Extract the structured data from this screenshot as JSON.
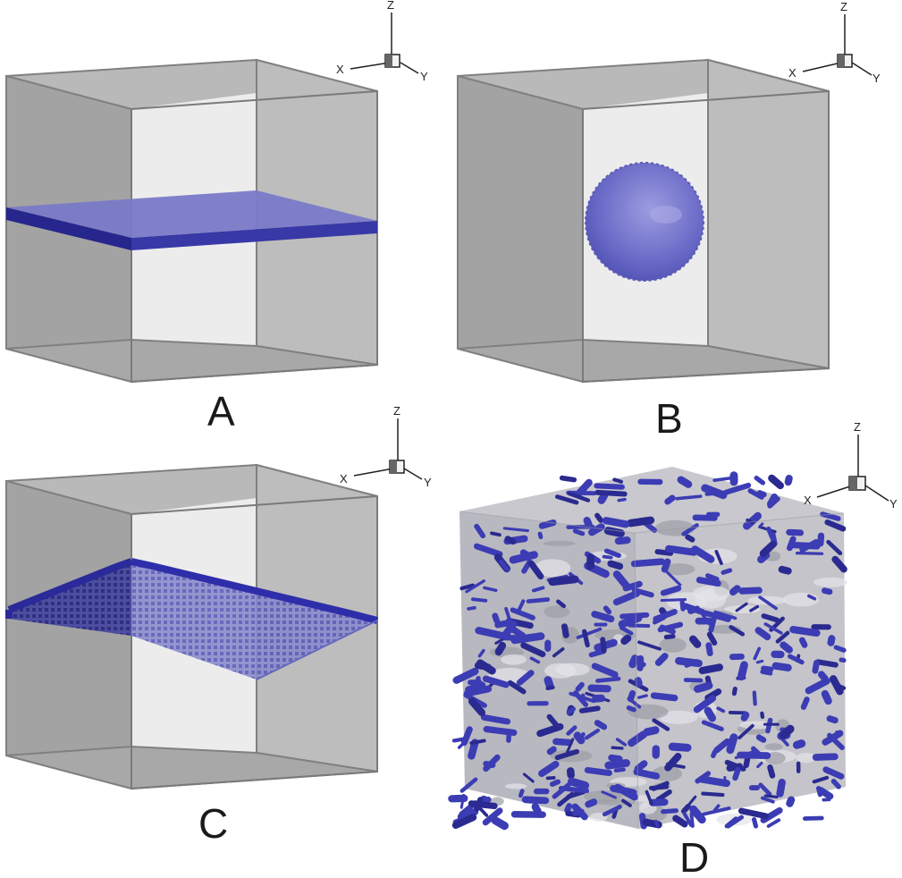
{
  "panels": [
    {
      "id": "A",
      "label": "A",
      "content": "horizontal-slab"
    },
    {
      "id": "B",
      "label": "B",
      "content": "sphere"
    },
    {
      "id": "C",
      "label": "C",
      "content": "tilted-pixelated-slab"
    },
    {
      "id": "D",
      "label": "D",
      "content": "random-fiber-inclusions"
    }
  ],
  "axes": {
    "x": "X",
    "y": "Y",
    "z": "Z"
  },
  "colors": {
    "box_face": "#a0a0a0",
    "box_light": "#eaeaea",
    "box_edge": "#7a7a7a",
    "inclusion": "#3c3cb4",
    "inclusion_light": "#7c7cd0"
  }
}
